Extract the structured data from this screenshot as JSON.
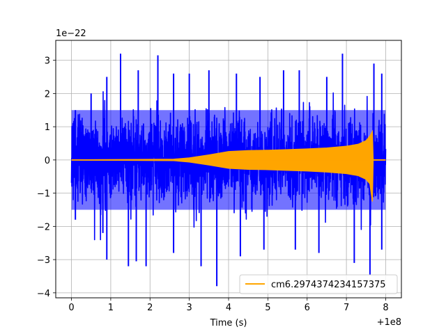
{
  "chart_data": {
    "type": "line",
    "title": "",
    "xlabel": "Time (s)",
    "ylabel": "",
    "x_offset_label": "+1e8",
    "y_scale_label": "1e−22",
    "xlim": [
      -0.4,
      8.4
    ],
    "ylim": [
      -4.15,
      3.6
    ],
    "x_ticks": [
      0,
      1,
      2,
      3,
      4,
      5,
      6,
      7,
      8
    ],
    "y_ticks": [
      -4,
      -3,
      -2,
      -1,
      0,
      1,
      2,
      3
    ],
    "grid": true,
    "legend_position": "lower-right",
    "series": [
      {
        "name": "",
        "color": "#0000ff",
        "description": "noise strain",
        "x_range": [
          0,
          8.0
        ],
        "envelope_typical": [
          -1.5,
          1.5
        ],
        "peaks_upper": [
          [
            0.1,
            1.5
          ],
          [
            0.5,
            2.0
          ],
          [
            0.9,
            2.5
          ],
          [
            1.25,
            3.2
          ],
          [
            1.7,
            2.7
          ],
          [
            2.2,
            3.15
          ],
          [
            2.6,
            2.6
          ],
          [
            3.0,
            2.6
          ],
          [
            3.5,
            2.7
          ],
          [
            4.2,
            2.6
          ],
          [
            4.8,
            2.5
          ],
          [
            5.4,
            2.7
          ],
          [
            5.8,
            2.7
          ],
          [
            6.5,
            2.5
          ],
          [
            6.9,
            3.2
          ],
          [
            7.7,
            2.9
          ],
          [
            7.9,
            2.6
          ]
        ],
        "peaks_lower": [
          [
            0.1,
            -1.8
          ],
          [
            0.8,
            -2.2
          ],
          [
            0.9,
            -3.0
          ],
          [
            1.45,
            -3.2
          ],
          [
            1.65,
            -3.05
          ],
          [
            1.9,
            -3.2
          ],
          [
            2.6,
            -2.8
          ],
          [
            3.3,
            -3.2
          ],
          [
            3.7,
            -3.8
          ],
          [
            4.3,
            -2.9
          ],
          [
            4.9,
            -2.7
          ],
          [
            5.7,
            -2.7
          ],
          [
            6.3,
            -2.8
          ],
          [
            7.2,
            -3.1
          ],
          [
            7.6,
            -3.45
          ],
          [
            7.9,
            -2.7
          ]
        ]
      },
      {
        "name": "cm6.2974374234157375",
        "color": "#ffa500",
        "description": "chirp template",
        "envelope": [
          [
            0,
            0.0
          ],
          [
            2.6,
            0.02
          ],
          [
            3.0,
            0.06
          ],
          [
            3.5,
            0.15
          ],
          [
            4.0,
            0.25
          ],
          [
            4.5,
            0.28
          ],
          [
            5.0,
            0.29
          ],
          [
            5.5,
            0.31
          ],
          [
            6.0,
            0.33
          ],
          [
            6.5,
            0.36
          ],
          [
            7.0,
            0.41
          ],
          [
            7.3,
            0.47
          ],
          [
            7.5,
            0.58
          ],
          [
            7.6,
            0.72
          ],
          [
            7.66,
            0.85
          ],
          [
            7.68,
            0.0
          ],
          [
            8.0,
            0.0
          ]
        ],
        "lower_dip": [
          7.66,
          -1.25
        ]
      }
    ]
  }
}
